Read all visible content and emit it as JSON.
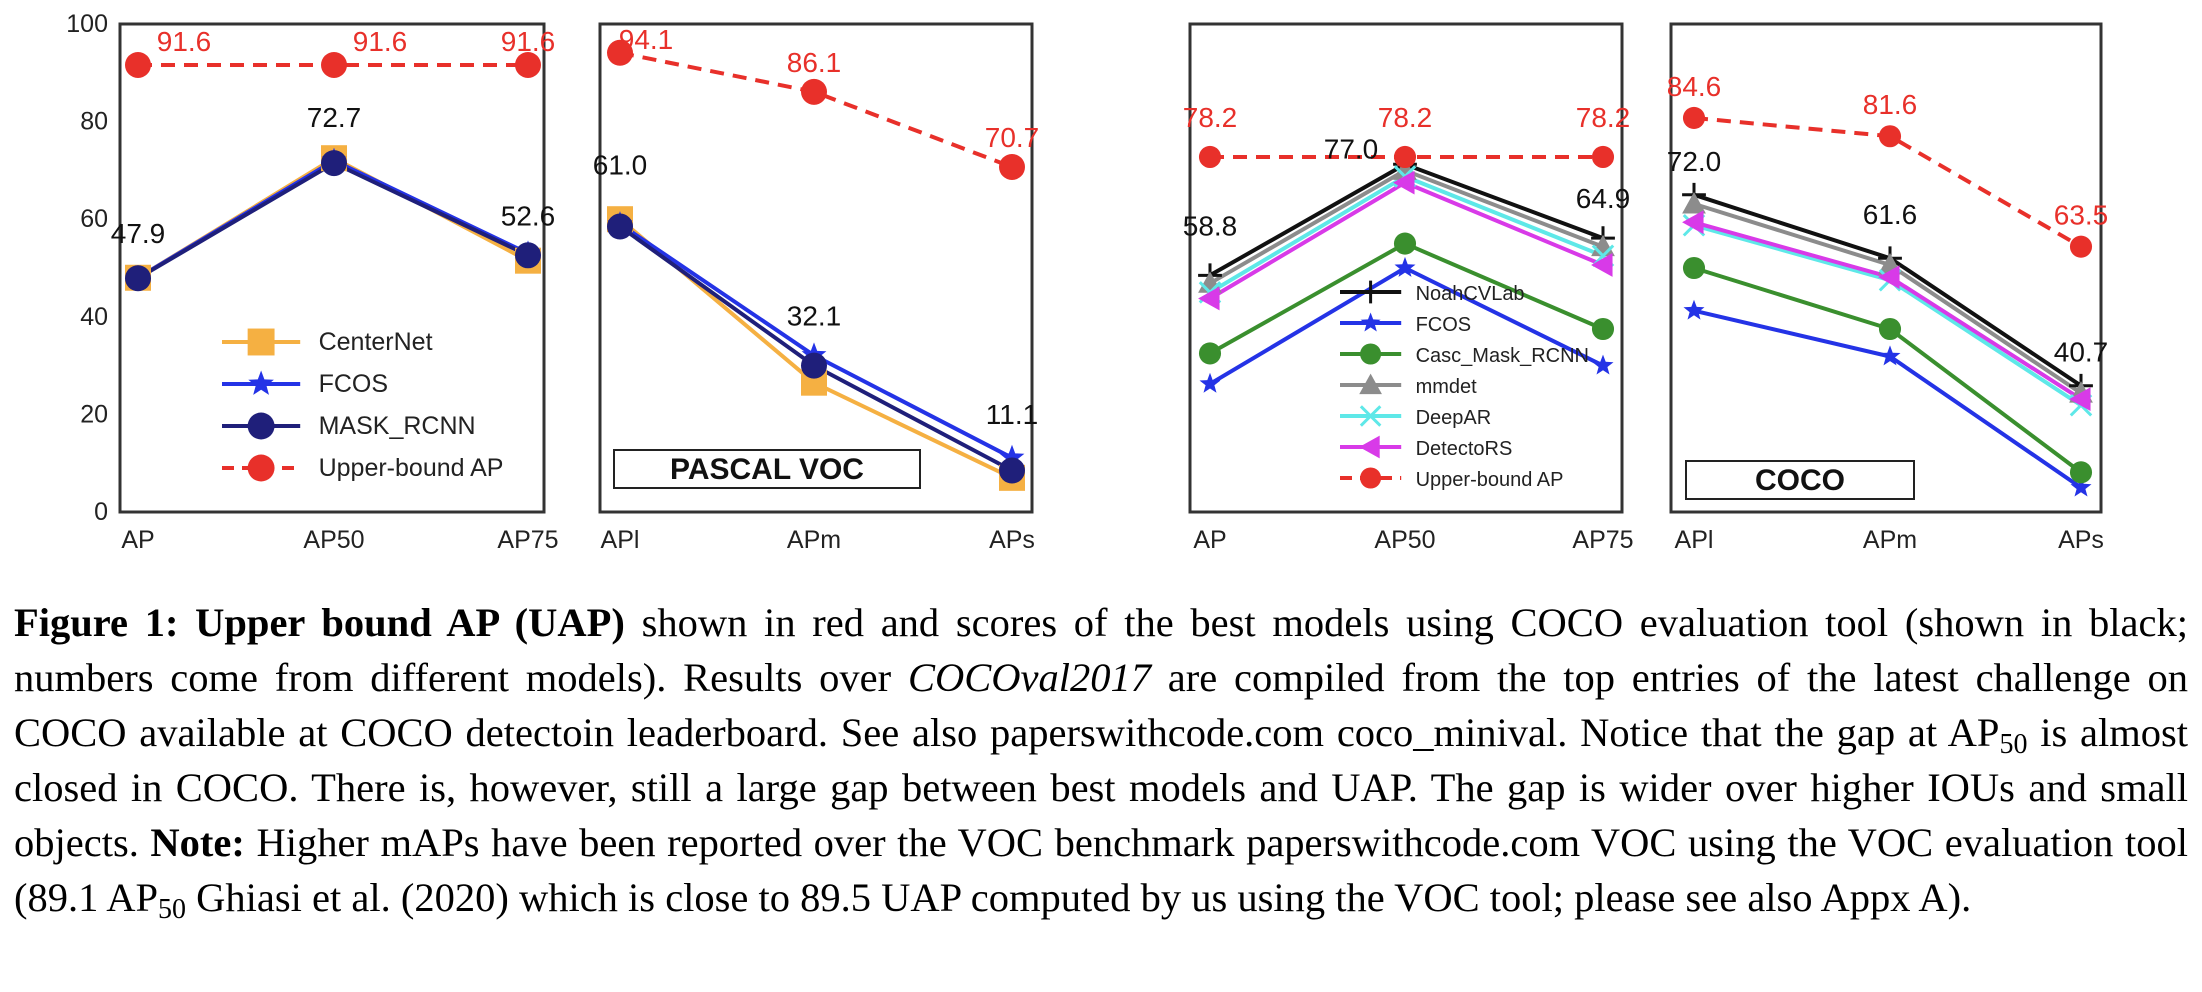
{
  "chart_data": [
    {
      "type": "line",
      "title": "",
      "categories": [
        "AP",
        "AP50",
        "AP75"
      ],
      "ylim": [
        0,
        100
      ],
      "yticks": [
        0,
        20,
        40,
        60,
        80,
        100
      ],
      "show_yticks": true,
      "legend": "lower-center",
      "series": [
        {
          "name": "CenterNet",
          "color": "#f5b042",
          "marker": "square",
          "dashed": false,
          "values": [
            48.0,
            72.5,
            51.5
          ]
        },
        {
          "name": "FCOS",
          "color": "#2433e6",
          "marker": "star",
          "dashed": false,
          "values": [
            48.0,
            72.0,
            53.0
          ]
        },
        {
          "name": "MASK_RCNN",
          "color": "#1f1f7a",
          "marker": "circle",
          "dashed": false,
          "values": [
            47.9,
            71.5,
            52.6
          ]
        },
        {
          "name": "Upper-bound AP",
          "color": "#e8302a",
          "marker": "circle",
          "dashed": true,
          "values": [
            91.6,
            91.6,
            91.6
          ]
        }
      ],
      "annotations": [
        {
          "text": "91.6",
          "color": "#e8302a",
          "x": "AP",
          "y": 91.6
        },
        {
          "text": "91.6",
          "color": "#e8302a",
          "x": "AP50",
          "y": 91.6
        },
        {
          "text": "91.6",
          "color": "#e8302a",
          "x": "AP75",
          "y": 91.6
        },
        {
          "text": "72.7",
          "color": "#111111",
          "x": "AP50",
          "y": 72.7
        },
        {
          "text": "47.9",
          "color": "#111111",
          "x": "AP",
          "y": 47.9
        },
        {
          "text": "52.6",
          "color": "#111111",
          "x": "AP75",
          "y": 52.6
        }
      ]
    },
    {
      "type": "line",
      "title": "",
      "categories": [
        "APl",
        "APm",
        "APs"
      ],
      "ylim": [
        0,
        100
      ],
      "show_yticks": false,
      "box_label": "PASCAL VOC",
      "series": [
        {
          "name": "CenterNet",
          "color": "#f5b042",
          "marker": "square",
          "dashed": false,
          "values": [
            60.0,
            26.5,
            7.0
          ]
        },
        {
          "name": "FCOS",
          "color": "#2433e6",
          "marker": "star",
          "dashed": false,
          "values": [
            59.0,
            32.1,
            11.1
          ]
        },
        {
          "name": "MASK_RCNN",
          "color": "#1f1f7a",
          "marker": "circle",
          "dashed": false,
          "values": [
            58.5,
            30.0,
            8.5
          ]
        },
        {
          "name": "Upper-bound AP",
          "color": "#e8302a",
          "marker": "circle",
          "dashed": true,
          "values": [
            94.1,
            86.1,
            70.7
          ]
        }
      ],
      "annotations": [
        {
          "text": "94.1",
          "color": "#e8302a",
          "x": "APl",
          "y": 94.1
        },
        {
          "text": "86.1",
          "color": "#e8302a",
          "x": "APm",
          "y": 86.1
        },
        {
          "text": "70.7",
          "color": "#e8302a",
          "x": "APs",
          "y": 70.7
        },
        {
          "text": "61.0",
          "color": "#111111",
          "x": "APl",
          "y": 61.0
        },
        {
          "text": "32.1",
          "color": "#111111",
          "x": "APm",
          "y": 32.1
        },
        {
          "text": "11.1",
          "color": "#111111",
          "x": "APs",
          "y": 11.1
        }
      ]
    },
    {
      "type": "line",
      "title": "",
      "categories": [
        "AP",
        "AP50",
        "AP75"
      ],
      "ylim": [
        20,
        100
      ],
      "show_yticks": false,
      "legend": "lower-center",
      "series": [
        {
          "name": "NoahCVLab",
          "color": "#111111",
          "marker": "plus",
          "dashed": false,
          "values": [
            58.8,
            77.0,
            64.9
          ]
        },
        {
          "name": "FCOS",
          "color": "#2433e6",
          "marker": "star",
          "dashed": false,
          "values": [
            41.0,
            60.0,
            44.0
          ]
        },
        {
          "name": "Casc_Mask_RCNN",
          "color": "#3a8f2e",
          "marker": "circle",
          "dashed": false,
          "values": [
            46.0,
            64.0,
            50.0
          ]
        },
        {
          "name": "mmdet",
          "color": "#8c8c8c",
          "marker": "triangle-up",
          "dashed": false,
          "values": [
            57.5,
            76.0,
            63.5
          ]
        },
        {
          "name": "DeepAR",
          "color": "#5ee8e8",
          "marker": "x",
          "dashed": false,
          "values": [
            56.0,
            75.0,
            62.0
          ]
        },
        {
          "name": "DetectoRS",
          "color": "#d83ae8",
          "marker": "triangle-left",
          "dashed": false,
          "values": [
            55.0,
            74.0,
            60.5
          ]
        },
        {
          "name": "Upper-bound AP",
          "color": "#e8302a",
          "marker": "circle",
          "dashed": true,
          "values": [
            78.2,
            78.2,
            78.2
          ]
        }
      ],
      "annotations": [
        {
          "text": "78.2",
          "color": "#e8302a",
          "x": "AP",
          "y": 78.2
        },
        {
          "text": "78.2",
          "color": "#e8302a",
          "x": "AP50",
          "y": 78.2
        },
        {
          "text": "78.2",
          "color": "#e8302a",
          "x": "AP75",
          "y": 78.2
        },
        {
          "text": "58.8",
          "color": "#111111",
          "x": "AP",
          "y": 58.8
        },
        {
          "text": "77.0",
          "color": "#111111",
          "x": "AP50",
          "y": 77.0
        },
        {
          "text": "64.9",
          "color": "#111111",
          "x": "AP75",
          "y": 64.9
        }
      ]
    },
    {
      "type": "line",
      "title": "",
      "categories": [
        "APl",
        "APm",
        "APs"
      ],
      "ylim": [
        20,
        100
      ],
      "show_yticks": false,
      "box_label": "COCO",
      "series": [
        {
          "name": "NoahCVLab",
          "color": "#111111",
          "marker": "plus",
          "dashed": false,
          "values": [
            72.0,
            61.6,
            40.7
          ]
        },
        {
          "name": "FCOS",
          "color": "#2433e6",
          "marker": "star",
          "dashed": false,
          "values": [
            53.0,
            45.5,
            24.0
          ]
        },
        {
          "name": "Casc_Mask_RCNN",
          "color": "#3a8f2e",
          "marker": "circle",
          "dashed": false,
          "values": [
            60.0,
            50.0,
            26.5
          ]
        },
        {
          "name": "mmdet",
          "color": "#8c8c8c",
          "marker": "triangle-up",
          "dashed": false,
          "values": [
            70.5,
            60.5,
            39.5
          ]
        },
        {
          "name": "DeepAR",
          "color": "#5ee8e8",
          "marker": "x",
          "dashed": false,
          "values": [
            67.0,
            58.0,
            37.5
          ]
        },
        {
          "name": "DetectoRS",
          "color": "#d83ae8",
          "marker": "triangle-left",
          "dashed": false,
          "values": [
            67.5,
            58.5,
            38.5
          ]
        },
        {
          "name": "Upper-bound AP",
          "color": "#e8302a",
          "marker": "circle",
          "dashed": true,
          "values": [
            84.6,
            81.6,
            63.5
          ]
        }
      ],
      "annotations": [
        {
          "text": "84.6",
          "color": "#e8302a",
          "x": "APl",
          "y": 84.6
        },
        {
          "text": "81.6",
          "color": "#e8302a",
          "x": "APm",
          "y": 81.6
        },
        {
          "text": "63.5",
          "color": "#e8302a",
          "x": "APs",
          "y": 63.5
        },
        {
          "text": "72.0",
          "color": "#111111",
          "x": "APl",
          "y": 72.0
        },
        {
          "text": "61.6",
          "color": "#111111",
          "x": "APm",
          "y": 61.6
        },
        {
          "text": "40.7",
          "color": "#111111",
          "x": "APs",
          "y": 40.7
        }
      ]
    }
  ],
  "caption": {
    "fig_label": "Figure 1:",
    "fig_title": "Upper bound AP (UAP)",
    "part1": "shown in red and scores of the best models using COCO evaluation tool (shown in black; numbers come from different models). Results over",
    "dataset_italic": "COCOval2017",
    "part2": "are compiled from the top entries of the latest challenge on COCO available at COCO detectoin leaderboard. See also paperswithcode.com coco_minival. Notice that the gap at AP",
    "sub50a": "50",
    "part3": "is almost closed in COCO. There is, however, still a large gap between best models and UAP. The gap is wider over higher IOUs and small objects.",
    "note_label": "Note:",
    "part4": "Higher mAPs have been reported over the VOC benchmark paperswithcode.com VOC using the VOC evaluation tool (89.1 AP",
    "sub50b": "50",
    "part5": "Ghiasi et al. (2020) which is close to 89.5 UAP computed by us using the VOC tool; please see also Appx A)."
  }
}
